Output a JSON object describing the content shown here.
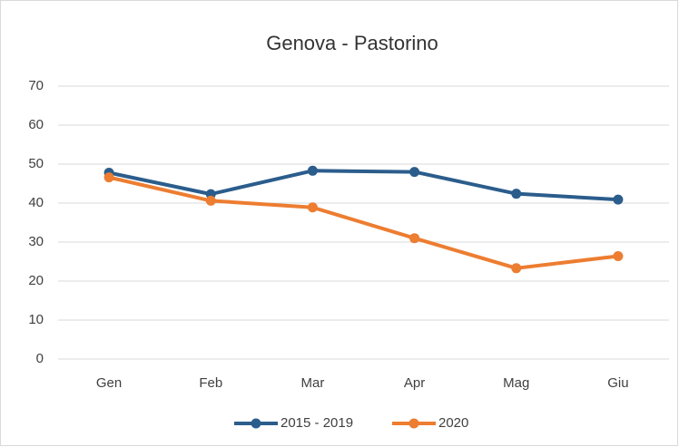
{
  "chart_data": {
    "type": "line",
    "title": "Genova - Pastorino",
    "categories": [
      "Gen",
      "Feb",
      "Mar",
      "Apr",
      "Mag",
      "Giu"
    ],
    "series": [
      {
        "name": "2015 - 2019",
        "color": "#2b5d8c",
        "values": [
          47.8,
          42.3,
          48.3,
          48.0,
          42.4,
          40.9
        ]
      },
      {
        "name": "2020",
        "color": "#ed7d31",
        "values": [
          46.6,
          40.6,
          38.9,
          31.0,
          23.3,
          26.4
        ]
      }
    ],
    "ylim": [
      0,
      70
    ],
    "yticks": [
      0,
      10,
      20,
      30,
      40,
      50,
      60,
      70
    ],
    "grid": true,
    "legend": "bottom"
  }
}
